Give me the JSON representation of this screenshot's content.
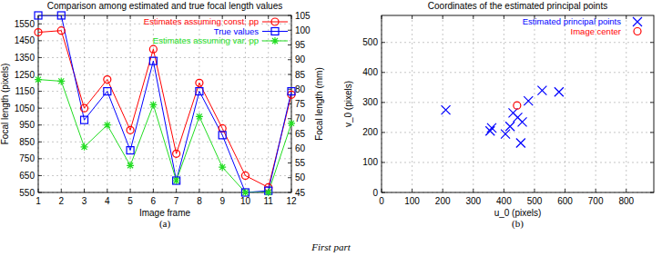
{
  "caption": "First part",
  "chart_data": [
    {
      "type": "line",
      "title": "Comparison among estimated and true focal length values",
      "caption": "(a)",
      "xlabel": "Image frame",
      "ylabel": "Focal length (pixels)",
      "y2label": "Focal length (mm)",
      "x": [
        1,
        2,
        3,
        4,
        5,
        6,
        7,
        8,
        9,
        10,
        11,
        12
      ],
      "xlim": [
        1,
        12
      ],
      "xticks": [
        1,
        2,
        3,
        4,
        5,
        6,
        7,
        8,
        9,
        10,
        11,
        12
      ],
      "ylim": [
        550,
        1600
      ],
      "yticks": [
        550,
        650,
        750,
        850,
        950,
        1050,
        1150,
        1250,
        1350,
        1450,
        1550
      ],
      "y2lim": [
        45,
        105
      ],
      "y2ticks": [
        45,
        50,
        55,
        60,
        65,
        70,
        75,
        80,
        85,
        90,
        95,
        100,
        105
      ],
      "grid": true,
      "legend": "top-right",
      "series": [
        {
          "name": "Estimates assuming const. pp",
          "color": "#ff0000",
          "marker": "circle",
          "line_style": "solid",
          "values": [
            1500,
            1510,
            1050,
            1220,
            920,
            1400,
            780,
            1200,
            930,
            650,
            580,
            1130
          ]
        },
        {
          "name": "True values",
          "color": "#0000ff",
          "marker": "square",
          "line_style": "solid",
          "values": [
            1600,
            1600,
            980,
            1150,
            800,
            1330,
            620,
            1150,
            890,
            550,
            560,
            1150
          ]
        },
        {
          "name": "Estimates assuming var. pp",
          "color": "#22dd22",
          "marker": "star",
          "line_style": "solid",
          "values": [
            1220,
            1210,
            820,
            950,
            710,
            1070,
            620,
            1000,
            700,
            550,
            550,
            960
          ]
        }
      ]
    },
    {
      "type": "scatter",
      "title": "Coordinates of the estimated principal points",
      "caption": "(b)",
      "xlabel": "u_0 (pixels)",
      "ylabel": "v_0 (pixels)",
      "xlim": [
        0,
        890
      ],
      "xticks": [
        0,
        100,
        200,
        300,
        400,
        500,
        600,
        700,
        800
      ],
      "ylim": [
        0,
        590
      ],
      "yticks": [
        0,
        100,
        200,
        300,
        400,
        500
      ],
      "grid": true,
      "legend": "top-right",
      "series": [
        {
          "name": "Estimated principal points",
          "color": "#0000ff",
          "marker": "x",
          "x": [
            210,
            355,
            360,
            405,
            420,
            430,
            445,
            455,
            460,
            480,
            525,
            580
          ],
          "values": [
            275,
            205,
            215,
            195,
            220,
            265,
            250,
            165,
            235,
            305,
            340,
            335
          ]
        },
        {
          "name": "Image center",
          "color": "#ff0000",
          "marker": "circle",
          "x": [
            443
          ],
          "values": [
            290
          ]
        }
      ]
    }
  ]
}
